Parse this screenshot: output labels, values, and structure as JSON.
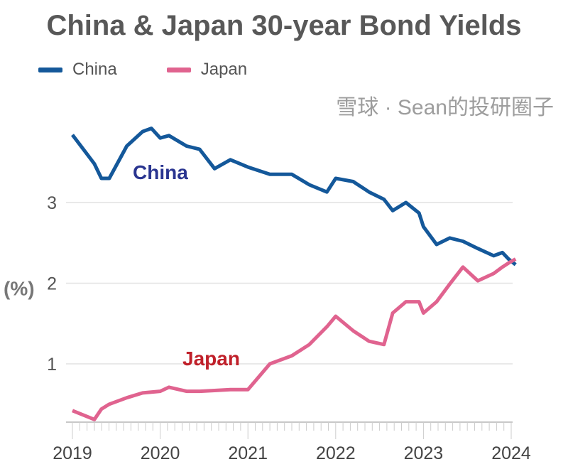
{
  "chart_data": {
    "type": "line",
    "title": "China & Japan 30-year Bond Yields",
    "ylabel": "(%)",
    "xlabel": "",
    "ylim": [
      0.29,
      4.0
    ],
    "xlim": [
      2019.0,
      2024.05
    ],
    "yticks": [
      1,
      2,
      3
    ],
    "xticks": [
      "2019",
      "2020",
      "2021",
      "2022",
      "2023",
      "2024"
    ],
    "grid": "horizontal",
    "legend_position": "top-left",
    "x": [
      2019.0,
      2019.25,
      2019.33,
      2019.42,
      2019.62,
      2019.8,
      2019.9,
      2020.0,
      2020.1,
      2020.3,
      2020.45,
      2020.62,
      2020.8,
      2021.0,
      2021.25,
      2021.5,
      2021.7,
      2021.9,
      2022.0,
      2022.2,
      2022.38,
      2022.55,
      2022.65,
      2022.8,
      2022.95,
      2023.0,
      2023.15,
      2023.3,
      2023.45,
      2023.62,
      2023.8,
      2023.9,
      2023.97,
      2024.05
    ],
    "series": [
      {
        "name": "China",
        "color": "#14589a",
        "label": "China",
        "label_color": "#2a3590",
        "values": [
          3.84,
          3.48,
          3.3,
          3.3,
          3.7,
          3.88,
          3.92,
          3.8,
          3.83,
          3.7,
          3.66,
          3.42,
          3.53,
          3.44,
          3.35,
          3.35,
          3.22,
          3.13,
          3.3,
          3.26,
          3.13,
          3.04,
          2.9,
          3.0,
          2.87,
          2.7,
          2.48,
          2.56,
          2.52,
          2.43,
          2.34,
          2.38,
          2.3,
          2.23
        ]
      },
      {
        "name": "Japan",
        "color": "#e0638f",
        "label": "Japan",
        "label_color": "#c0202a",
        "values": [
          0.42,
          0.31,
          0.44,
          0.5,
          0.58,
          0.64,
          0.65,
          0.66,
          0.71,
          0.66,
          0.66,
          0.67,
          0.68,
          0.68,
          1.0,
          1.1,
          1.24,
          1.46,
          1.59,
          1.41,
          1.28,
          1.24,
          1.63,
          1.77,
          1.77,
          1.63,
          1.77,
          1.99,
          2.2,
          2.03,
          2.12,
          2.2,
          2.25,
          2.3
        ]
      }
    ]
  },
  "watermark": "雪球 · Sean的投研圈子"
}
